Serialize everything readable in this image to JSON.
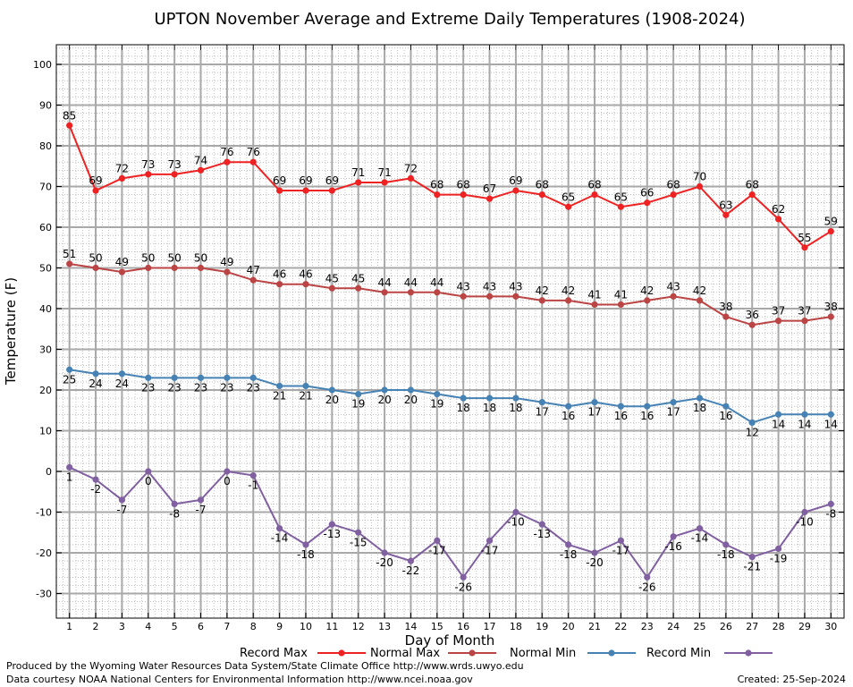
{
  "chart_data": {
    "type": "line",
    "title": "UPTON November Average and Extreme Daily Temperatures (1908-2024)",
    "xlabel": "Day of Month",
    "ylabel": "Temperature (F)",
    "xlim": [
      1,
      30
    ],
    "ylim": [
      -37,
      105
    ],
    "yticks": [
      -30,
      -20,
      -10,
      0,
      10,
      20,
      30,
      40,
      50,
      60,
      70,
      80,
      90,
      100
    ],
    "x": [
      1,
      2,
      3,
      4,
      5,
      6,
      7,
      8,
      9,
      10,
      11,
      12,
      13,
      14,
      15,
      16,
      17,
      18,
      19,
      20,
      21,
      22,
      23,
      24,
      25,
      26,
      27,
      28,
      29,
      30
    ],
    "grid": true,
    "legend_position": "bottom",
    "series": [
      {
        "name": "Record Max",
        "color": "#ee2222",
        "values": [
          85,
          69,
          72,
          73,
          73,
          74,
          76,
          76,
          69,
          69,
          69,
          71,
          71,
          72,
          68,
          68,
          67,
          69,
          68,
          65,
          68,
          65,
          66,
          68,
          70,
          63,
          68,
          62,
          55,
          59
        ]
      },
      {
        "name": "Normal Max",
        "color": "#bb4444",
        "values": [
          51,
          50,
          49,
          50,
          50,
          50,
          49,
          47,
          46,
          46,
          45,
          45,
          44,
          44,
          44,
          43,
          43,
          43,
          42,
          42,
          41,
          41,
          42,
          43,
          42,
          38,
          36,
          37,
          37,
          38
        ]
      },
      {
        "name": "Normal Min",
        "color": "#4682b4",
        "values": [
          25,
          24,
          24,
          23,
          23,
          23,
          23,
          23,
          21,
          21,
          20,
          19,
          20,
          20,
          19,
          18,
          18,
          18,
          17,
          16,
          17,
          16,
          16,
          17,
          18,
          16,
          12,
          14,
          14,
          14
        ]
      },
      {
        "name": "Record Min",
        "color": "#8060a0",
        "values": [
          1,
          -2,
          -7,
          0,
          -8,
          -7,
          0,
          -1,
          -14,
          -18,
          -13,
          -15,
          -20,
          -22,
          -17,
          -26,
          -17,
          -10,
          -13,
          -18,
          -20,
          -17,
          -26,
          -16,
          -14,
          -18,
          -21,
          -19,
          -10,
          -8
        ]
      }
    ]
  },
  "footer": {
    "produced_by": "Produced by the Wyoming Water Resources Data System/State Climate Office http://www.wrds.uwyo.edu",
    "data_courtesy": "Data courtesy NOAA National Centers for Environmental Information http://www.ncei.noaa.gov",
    "created": "Created:  25-Sep-2024"
  }
}
